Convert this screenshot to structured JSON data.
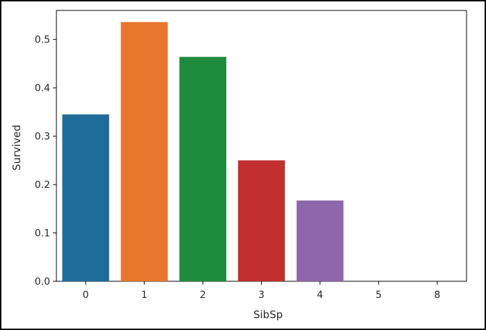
{
  "chart_data": {
    "type": "bar",
    "categories": [
      "0",
      "1",
      "2",
      "3",
      "4",
      "5",
      "8"
    ],
    "values": [
      0.345,
      0.536,
      0.464,
      0.25,
      0.167,
      0.0,
      0.0
    ],
    "colors": [
      "#1f6b9a",
      "#e8762c",
      "#1f8b3c",
      "#c1302f",
      "#8e67ab",
      "#8c564b",
      "#e377c2"
    ],
    "xlabel": "SibSp",
    "ylabel": "Survived",
    "ylim": [
      0,
      0.56
    ],
    "yticks": [
      0.0,
      0.1,
      0.2,
      0.3,
      0.4,
      0.5
    ],
    "ytick_labels": [
      "0.0",
      "0.1",
      "0.2",
      "0.3",
      "0.4",
      "0.5"
    ],
    "grid": false,
    "legend": "none"
  }
}
